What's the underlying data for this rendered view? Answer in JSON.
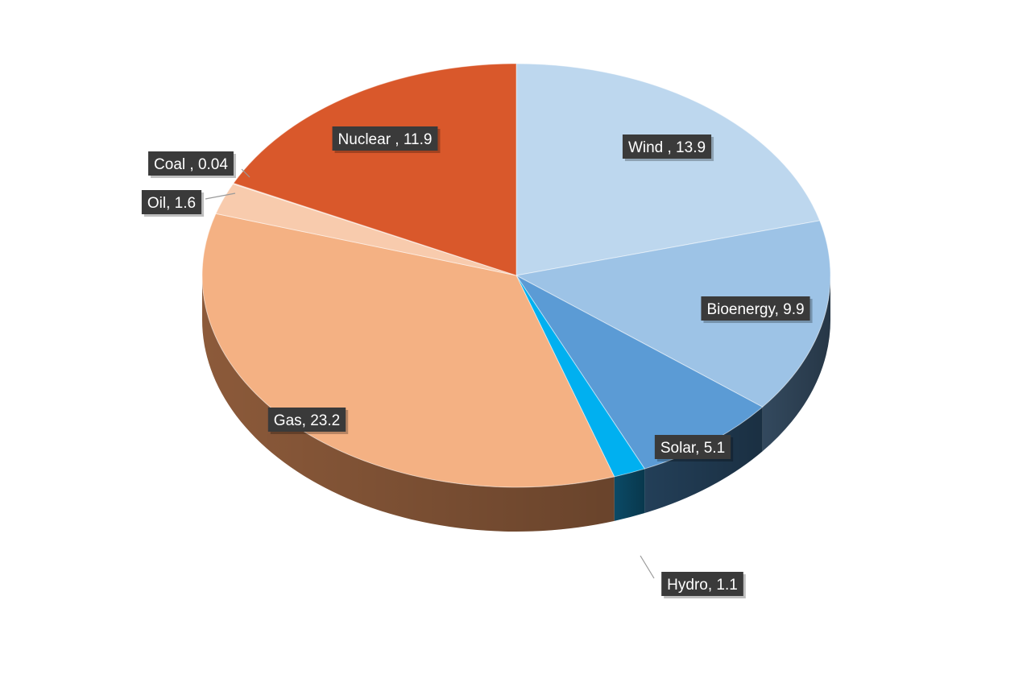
{
  "chart_data": {
    "type": "pie",
    "style": "3d",
    "title": "",
    "slices": [
      {
        "name": "Wind",
        "value": 13.9,
        "label": "Wind , 13.9",
        "color": "#bdd7ee",
        "side": "#8fa8c0"
      },
      {
        "name": "Bioenergy",
        "value": 9.9,
        "label": "Bioenergy, 9.9",
        "color": "#9dc3e6",
        "side": "#33495e"
      },
      {
        "name": "Solar",
        "value": 5.1,
        "label": "Solar, 5.1",
        "color": "#5b9bd5",
        "side": "#233f58"
      },
      {
        "name": "Hydro",
        "value": 1.1,
        "label": "Hydro, 1.1",
        "color": "#00b0f0",
        "side": "#0b4a66"
      },
      {
        "name": "Gas",
        "value": 23.2,
        "label": "Gas, 23.2",
        "color": "#f4b183",
        "side": "#8c5a3a"
      },
      {
        "name": "Oil",
        "value": 1.6,
        "label": "Oil, 1.6",
        "color": "#f8cbad",
        "side": "#b88a6e"
      },
      {
        "name": "Coal",
        "value": 0.04,
        "label": "Coal , 0.04",
        "color": "#f8cbad",
        "side": "#b88a6e"
      },
      {
        "name": "Nuclear",
        "value": 11.9,
        "label": "Nuclear , 11.9",
        "color": "#d9582b",
        "side": "#7a3015"
      }
    ]
  }
}
